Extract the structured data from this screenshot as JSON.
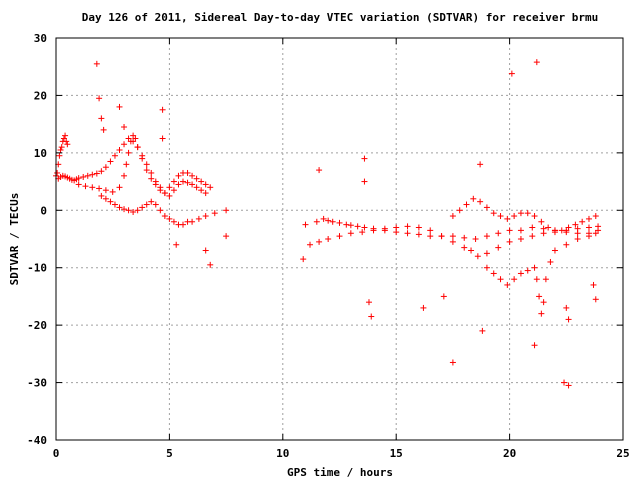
{
  "chart_data": {
    "type": "scatter",
    "title": "Day 126 of 2011, Sidereal Day-to-day VTEC variation (SDTVAR) for receiver brmu",
    "xlabel": "GPS time / hours",
    "ylabel": "SDTVAR / TECUs",
    "xlim": [
      0,
      25
    ],
    "ylim": [
      -40,
      30
    ],
    "xticks": [
      0,
      5,
      10,
      15,
      20,
      25
    ],
    "yticks": [
      -40,
      -30,
      -20,
      -10,
      0,
      10,
      20,
      30
    ],
    "xtick_labels": [
      "0",
      "5",
      "10",
      "15",
      "20",
      "25"
    ],
    "ytick_labels": [
      "-40",
      "-30",
      "-20",
      "-10",
      "0",
      "10",
      "20",
      "30"
    ],
    "grid": true,
    "marker": "+",
    "color": "#ff0000",
    "series": [
      {
        "name": "",
        "x": [
          0.0,
          0.05,
          0.1,
          0.15,
          0.2,
          0.25,
          0.3,
          0.35,
          0.4,
          0.45,
          0.5,
          0.1,
          0.2,
          0.3,
          0.4,
          0.5,
          0.6,
          0.7,
          0.8,
          0.9,
          1.0,
          1.2,
          1.4,
          1.6,
          1.8,
          2.0,
          2.2,
          2.4,
          2.6,
          2.8,
          3.0,
          3.2,
          3.4,
          3.6,
          3.8,
          4.0,
          4.2,
          4.4,
          4.6,
          4.8,
          5.0,
          5.2,
          5.4,
          5.6,
          5.8,
          6.0,
          6.2,
          6.4,
          6.6,
          1.0,
          1.3,
          1.6,
          1.9,
          2.2,
          2.5,
          2.8,
          3.0,
          3.1,
          3.2,
          3.3,
          3.4,
          3.5,
          3.6,
          3.8,
          4.0,
          4.2,
          4.4,
          4.6,
          4.8,
          5.0,
          5.2,
          5.4,
          5.6,
          5.8,
          6.0,
          6.2,
          6.4,
          6.6,
          6.8,
          2.0,
          2.2,
          2.4,
          2.6,
          2.8,
          3.0,
          3.2,
          3.4,
          3.6,
          3.8,
          4.0,
          4.2,
          4.4,
          4.6,
          4.8,
          5.0,
          5.2,
          5.4,
          5.6,
          5.8,
          6.0,
          6.3,
          6.6,
          7.0,
          7.5,
          1.8,
          1.9,
          2.0,
          2.1,
          2.8,
          3.0,
          4.7,
          4.7,
          5.3,
          6.6,
          6.8,
          7.5,
          11.0,
          11.5,
          11.8,
          12.0,
          12.2,
          12.5,
          12.8,
          13.0,
          13.3,
          13.6,
          14.0,
          14.5,
          15.0,
          15.5,
          16.0,
          16.5,
          17.0,
          17.5,
          18.0,
          18.5,
          19.0,
          19.5,
          20.0,
          20.5,
          21.0,
          21.5,
          22.0,
          22.5,
          23.0,
          23.5,
          23.9,
          11.2,
          11.6,
          12.0,
          12.5,
          13.0,
          13.5,
          14.0,
          14.5,
          15.0,
          15.5,
          16.0,
          16.5,
          17.0,
          17.5,
          18.0,
          18.3,
          18.6,
          19.0,
          19.5,
          20.0,
          20.5,
          21.0,
          21.5,
          22.0,
          22.5,
          23.0,
          23.5,
          23.9,
          17.5,
          17.8,
          18.1,
          18.4,
          18.7,
          19.0,
          19.3,
          19.6,
          19.9,
          20.2,
          20.5,
          20.8,
          21.1,
          21.4,
          21.7,
          22.0,
          22.3,
          22.6,
          22.9,
          23.2,
          23.5,
          23.8,
          19.0,
          19.3,
          19.6,
          19.9,
          20.2,
          20.5,
          20.8,
          21.1,
          21.2,
          21.3,
          21.4,
          21.5,
          21.6,
          21.8,
          22.0,
          22.5,
          23.0,
          23.5,
          23.8,
          13.6,
          13.6,
          13.8,
          13.9,
          17.1,
          17.5,
          18.7,
          18.8,
          20.1,
          21.2,
          21.1,
          22.4,
          22.6,
          22.5,
          22.6,
          23.7,
          23.8,
          11.6,
          10.9,
          16.2
        ],
        "y": [
          6.0,
          6.5,
          8.0,
          9.5,
          10.5,
          11.0,
          12.0,
          12.5,
          13.0,
          12.0,
          11.5,
          5.5,
          5.8,
          6.0,
          5.9,
          5.7,
          5.5,
          5.3,
          5.2,
          5.4,
          5.6,
          5.8,
          6.0,
          6.2,
          6.4,
          6.8,
          7.5,
          8.5,
          9.5,
          10.5,
          11.5,
          12.5,
          12.0,
          11.0,
          9.5,
          8.0,
          6.5,
          5.0,
          4.0,
          3.0,
          2.5,
          3.5,
          4.5,
          5.0,
          4.8,
          4.5,
          4.0,
          3.5,
          3.0,
          4.5,
          4.2,
          4.0,
          3.8,
          3.5,
          3.2,
          4.0,
          6.0,
          8.0,
          10.0,
          12.0,
          13.0,
          12.5,
          11.0,
          9.0,
          7.0,
          5.5,
          4.5,
          3.5,
          3.0,
          4.0,
          5.0,
          6.0,
          6.5,
          6.5,
          6.0,
          5.5,
          5.0,
          4.5,
          4.0,
          2.5,
          2.0,
          1.5,
          1.0,
          0.5,
          0.2,
          0.0,
          -0.3,
          0.0,
          0.5,
          1.0,
          1.5,
          1.0,
          0.0,
          -1.0,
          -1.5,
          -2.0,
          -2.5,
          -2.5,
          -2.0,
          -2.0,
          -1.5,
          -1.0,
          -0.5,
          0.0,
          25.5,
          19.5,
          16.0,
          14.0,
          18.0,
          14.5,
          17.5,
          12.5,
          -6.0,
          -7.0,
          -9.5,
          -4.5,
          -2.5,
          -2.0,
          -1.5,
          -1.8,
          -2.0,
          -2.2,
          -2.5,
          -2.6,
          -2.8,
          -3.0,
          -3.2,
          -3.5,
          -3.8,
          -4.0,
          -4.2,
          -4.5,
          -4.5,
          -4.5,
          -4.8,
          -5.0,
          -4.5,
          -4.0,
          -3.5,
          -3.5,
          -3.0,
          -3.2,
          -3.5,
          -3.8,
          -4.0,
          -4.0,
          -3.5,
          -6.0,
          -5.5,
          -5.0,
          -4.5,
          -4.0,
          -3.8,
          -3.5,
          -3.2,
          -3.0,
          -2.8,
          -3.0,
          -3.5,
          -4.5,
          -5.5,
          -6.5,
          -7.0,
          -8.0,
          -7.5,
          -6.5,
          -5.5,
          -5.0,
          -4.5,
          -4.0,
          -3.8,
          -3.5,
          -3.2,
          -3.0,
          -2.8,
          -1.0,
          0.0,
          1.0,
          2.0,
          1.5,
          0.5,
          -0.5,
          -1.0,
          -1.5,
          -1.0,
          -0.5,
          -0.5,
          -1.0,
          -2.0,
          -3.0,
          -3.5,
          -3.5,
          -3.0,
          -2.5,
          -2.0,
          -1.5,
          -1.0,
          -10.0,
          -11.0,
          -12.0,
          -13.0,
          -12.0,
          -11.0,
          -10.5,
          -10.0,
          -12.0,
          -15.0,
          -18.0,
          -16.0,
          -12.0,
          -9.0,
          -7.0,
          -6.0,
          -5.0,
          -4.5,
          -4.0,
          9.0,
          5.0,
          -16.0,
          -18.5,
          -15.0,
          -26.5,
          8.0,
          -21.0,
          23.8,
          25.8,
          -23.5,
          -30.0,
          -30.5,
          -17.0,
          -19.0,
          -13.0,
          -15.5,
          7.0,
          -8.5,
          -17.0
        ]
      }
    ]
  }
}
